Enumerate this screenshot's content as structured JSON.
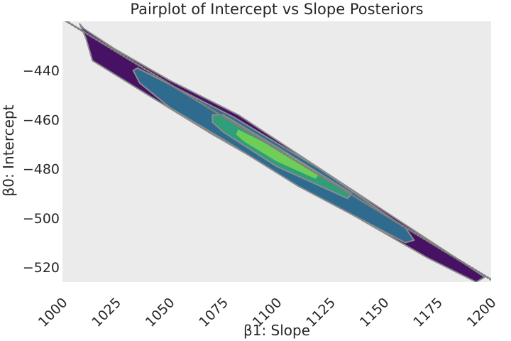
{
  "chart_data": {
    "type": "contour",
    "title": "Pairplot of Intercept vs Slope Posteriors",
    "xlabel": "β1: Slope",
    "ylabel": "β0: Intercept",
    "xlim": [
      1000,
      1200
    ],
    "ylim": [
      -526,
      -420
    ],
    "xticks": [
      1000,
      1025,
      1050,
      1075,
      1100,
      1125,
      1150,
      1175,
      1200
    ],
    "yticks": [
      -440,
      -460,
      -480,
      -500,
      -520
    ],
    "ytick_labels": [
      "−440",
      "−460",
      "−480",
      "−500",
      "−520"
    ],
    "grid": false,
    "background": "#ebebeb",
    "reference_line": {
      "style": "dotted",
      "color": "#7f7f7f",
      "points": [
        [
          1000,
          -419
        ],
        [
          1200,
          -525
        ]
      ]
    },
    "levels": [
      {
        "color": "#471164",
        "outline": "#8c8c8c",
        "points": [
          [
            1008,
            -421
          ],
          [
            1010,
            -423
          ],
          [
            1024,
            -431
          ],
          [
            1050,
            -444
          ],
          [
            1082,
            -458
          ],
          [
            1150,
            -497
          ],
          [
            1178,
            -513
          ],
          [
            1197,
            -524
          ],
          [
            1193,
            -526
          ],
          [
            1170,
            -516
          ],
          [
            1120,
            -491
          ],
          [
            1070,
            -466
          ],
          [
            1040,
            -450
          ],
          [
            1014,
            -436
          ],
          [
            1011,
            -427
          ]
        ]
      },
      {
        "color": "#2f6b8e",
        "outline": "#8c8c8c",
        "points": [
          [
            1033,
            -440
          ],
          [
            1035,
            -439
          ],
          [
            1080,
            -459
          ],
          [
            1120,
            -480
          ],
          [
            1160,
            -504
          ],
          [
            1164,
            -509
          ],
          [
            1160,
            -510
          ],
          [
            1110,
            -487
          ],
          [
            1075,
            -468
          ],
          [
            1050,
            -455
          ],
          [
            1036,
            -445
          ]
        ]
      },
      {
        "color": "#2f9e7a",
        "outline": "#8c8c8c",
        "points": [
          [
            1070,
            -458
          ],
          [
            1075,
            -458
          ],
          [
            1100,
            -471
          ],
          [
            1135,
            -490
          ],
          [
            1133,
            -492
          ],
          [
            1100,
            -479
          ],
          [
            1075,
            -465
          ],
          [
            1070,
            -461
          ]
        ]
      },
      {
        "color": "#6ece58",
        "outline": "none",
        "points": [
          [
            1082,
            -464
          ],
          [
            1105,
            -474
          ],
          [
            1120,
            -482
          ],
          [
            1118,
            -484
          ],
          [
            1100,
            -477
          ],
          [
            1085,
            -469
          ],
          [
            1081,
            -466
          ]
        ]
      }
    ]
  }
}
